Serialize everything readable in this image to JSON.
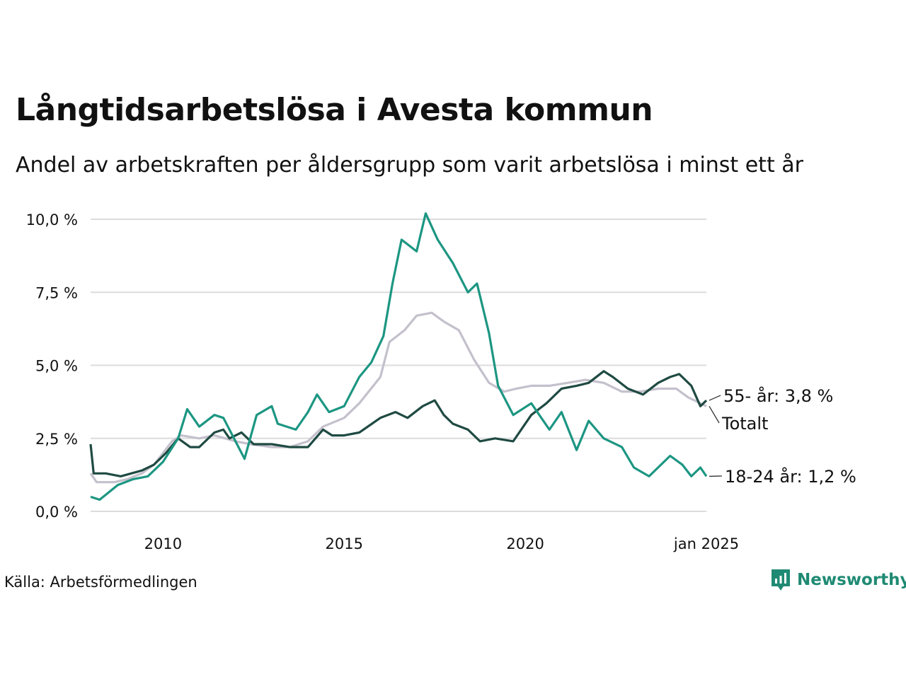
{
  "title": "Långtidsarbetslösa i Avesta kommun",
  "subtitle": "Andel av arbetskraften per åldersgrupp som varit arbetslösa i minst ett år",
  "source": "Källa: Arbetsförmedlingen",
  "brand": "Newsworthy",
  "chart_data": {
    "type": "line",
    "y_ticks": [
      "0,0 %",
      "2,5 %",
      "5,0 %",
      "7,5 %",
      "10,0 %"
    ],
    "x_ticks": [
      "2010",
      "2015",
      "2020",
      "jan 2025"
    ],
    "grid": "horizontal",
    "legend": "inline labels at right end of lines",
    "series": [
      {
        "name": "Totalt",
        "label": "Totalt",
        "color": "#c4c0cc",
        "points": [
          [
            "2008-01",
            1.3
          ],
          [
            "2008-03",
            1.0
          ],
          [
            "2008-09",
            1.0
          ],
          [
            "2009-01",
            1.1
          ],
          [
            "2009-06",
            1.3
          ],
          [
            "2009-10",
            1.6
          ],
          [
            "2010-01",
            2.0
          ],
          [
            "2010-04",
            2.4
          ],
          [
            "2010-07",
            2.6
          ],
          [
            "2011-01",
            2.5
          ],
          [
            "2011-06",
            2.6
          ],
          [
            "2012-01",
            2.4
          ],
          [
            "2012-06",
            2.3
          ],
          [
            "2013-01",
            2.2
          ],
          [
            "2013-07",
            2.2
          ],
          [
            "2014-01",
            2.4
          ],
          [
            "2014-06",
            2.9
          ],
          [
            "2015-01",
            3.2
          ],
          [
            "2015-06",
            3.7
          ],
          [
            "2016-01",
            4.6
          ],
          [
            "2016-04",
            5.8
          ],
          [
            "2016-09",
            6.2
          ],
          [
            "2017-01",
            6.7
          ],
          [
            "2017-06",
            6.8
          ],
          [
            "2017-10",
            6.5
          ],
          [
            "2018-03",
            6.2
          ],
          [
            "2018-08",
            5.2
          ],
          [
            "2019-01",
            4.4
          ],
          [
            "2019-06",
            4.1
          ],
          [
            "2019-10",
            4.2
          ],
          [
            "2020-03",
            4.3
          ],
          [
            "2020-09",
            4.3
          ],
          [
            "2021-03",
            4.4
          ],
          [
            "2021-09",
            4.5
          ],
          [
            "2022-03",
            4.4
          ],
          [
            "2022-09",
            4.1
          ],
          [
            "2023-03",
            4.1
          ],
          [
            "2023-09",
            4.2
          ],
          [
            "2024-03",
            4.2
          ],
          [
            "2024-07",
            3.9
          ],
          [
            "2024-11",
            3.7
          ],
          [
            "2025-01",
            3.6
          ]
        ]
      },
      {
        "name": "55- år",
        "label": "55- år: 3,8 %",
        "color": "#1f4a42",
        "points": [
          [
            "2008-01",
            2.3
          ],
          [
            "2008-02",
            1.3
          ],
          [
            "2008-06",
            1.3
          ],
          [
            "2008-11",
            1.2
          ],
          [
            "2009-06",
            1.4
          ],
          [
            "2009-10",
            1.6
          ],
          [
            "2010-02",
            2.0
          ],
          [
            "2010-06",
            2.5
          ],
          [
            "2010-10",
            2.2
          ],
          [
            "2011-01",
            2.2
          ],
          [
            "2011-06",
            2.7
          ],
          [
            "2011-09",
            2.8
          ],
          [
            "2011-11",
            2.5
          ],
          [
            "2012-03",
            2.7
          ],
          [
            "2012-07",
            2.3
          ],
          [
            "2013-01",
            2.3
          ],
          [
            "2013-07",
            2.2
          ],
          [
            "2014-01",
            2.2
          ],
          [
            "2014-06",
            2.8
          ],
          [
            "2014-09",
            2.6
          ],
          [
            "2015-01",
            2.6
          ],
          [
            "2015-06",
            2.7
          ],
          [
            "2016-01",
            3.2
          ],
          [
            "2016-06",
            3.4
          ],
          [
            "2016-10",
            3.2
          ],
          [
            "2017-03",
            3.6
          ],
          [
            "2017-07",
            3.8
          ],
          [
            "2017-10",
            3.3
          ],
          [
            "2018-01",
            3.0
          ],
          [
            "2018-06",
            2.8
          ],
          [
            "2018-10",
            2.4
          ],
          [
            "2019-03",
            2.5
          ],
          [
            "2019-09",
            2.4
          ],
          [
            "2020-03",
            3.3
          ],
          [
            "2020-08",
            3.7
          ],
          [
            "2021-01",
            4.2
          ],
          [
            "2021-06",
            4.3
          ],
          [
            "2021-10",
            4.4
          ],
          [
            "2022-03",
            4.8
          ],
          [
            "2022-06",
            4.6
          ],
          [
            "2022-11",
            4.2
          ],
          [
            "2023-04",
            4.0
          ],
          [
            "2023-09",
            4.4
          ],
          [
            "2024-01",
            4.6
          ],
          [
            "2024-04",
            4.7
          ],
          [
            "2024-08",
            4.3
          ],
          [
            "2024-11",
            3.6
          ],
          [
            "2025-01",
            3.8
          ]
        ]
      },
      {
        "name": "18-24 år",
        "label": "18-24 år: 1,2 %",
        "color": "#1c9682",
        "points": [
          [
            "2008-01",
            0.5
          ],
          [
            "2008-04",
            0.4
          ],
          [
            "2008-10",
            0.9
          ],
          [
            "2009-03",
            1.1
          ],
          [
            "2009-08",
            1.2
          ],
          [
            "2010-01",
            1.7
          ],
          [
            "2010-06",
            2.5
          ],
          [
            "2010-09",
            3.5
          ],
          [
            "2011-01",
            2.9
          ],
          [
            "2011-06",
            3.3
          ],
          [
            "2011-09",
            3.2
          ],
          [
            "2012-01",
            2.4
          ],
          [
            "2012-04",
            1.8
          ],
          [
            "2012-08",
            3.3
          ],
          [
            "2013-01",
            3.6
          ],
          [
            "2013-03",
            3.0
          ],
          [
            "2013-09",
            2.8
          ],
          [
            "2014-01",
            3.4
          ],
          [
            "2014-04",
            4.0
          ],
          [
            "2014-08",
            3.4
          ],
          [
            "2015-01",
            3.6
          ],
          [
            "2015-06",
            4.6
          ],
          [
            "2015-10",
            5.1
          ],
          [
            "2016-02",
            6.0
          ],
          [
            "2016-05",
            7.8
          ],
          [
            "2016-08",
            9.3
          ],
          [
            "2017-01",
            8.9
          ],
          [
            "2017-04",
            10.2
          ],
          [
            "2017-08",
            9.3
          ],
          [
            "2018-01",
            8.5
          ],
          [
            "2018-06",
            7.5
          ],
          [
            "2018-09",
            7.8
          ],
          [
            "2019-01",
            6.1
          ],
          [
            "2019-04",
            4.3
          ],
          [
            "2019-09",
            3.3
          ],
          [
            "2020-03",
            3.7
          ],
          [
            "2020-09",
            2.8
          ],
          [
            "2021-01",
            3.4
          ],
          [
            "2021-06",
            2.1
          ],
          [
            "2021-10",
            3.1
          ],
          [
            "2022-03",
            2.5
          ],
          [
            "2022-09",
            2.2
          ],
          [
            "2023-01",
            1.5
          ],
          [
            "2023-06",
            1.2
          ],
          [
            "2023-10",
            1.6
          ],
          [
            "2024-01",
            1.9
          ],
          [
            "2024-05",
            1.6
          ],
          [
            "2024-08",
            1.2
          ],
          [
            "2024-11",
            1.5
          ],
          [
            "2025-01",
            1.2
          ]
        ]
      }
    ]
  }
}
